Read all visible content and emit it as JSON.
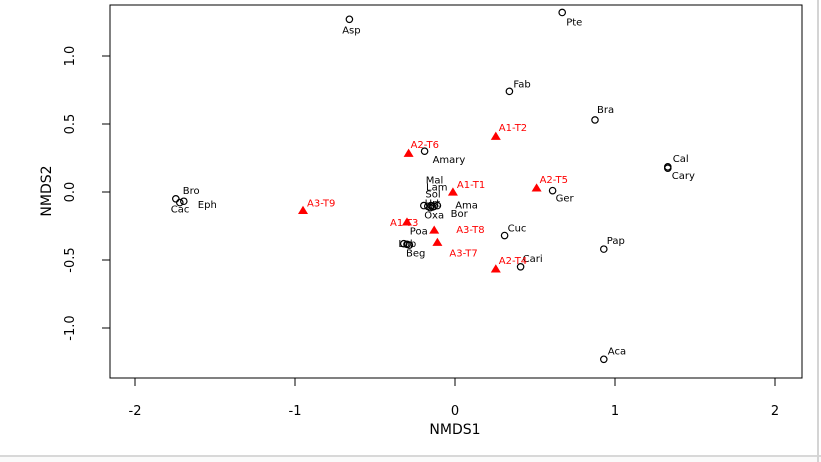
{
  "window": {
    "background": "#ffffff",
    "frame_line_color": "#d4d4d4"
  },
  "chart_data": {
    "type": "scatter",
    "title": "",
    "xlabel": "NMDS1",
    "ylabel": "NMDS2",
    "xlim": [
      -2.16,
      2.17
    ],
    "ylim": [
      -1.38,
      1.38
    ],
    "xticks": [
      -2,
      -1,
      0,
      1,
      2
    ],
    "xtick_labels": [
      "-2",
      "-1",
      "0",
      "1",
      "2"
    ],
    "yticks": [
      -1.0,
      -0.5,
      0.0,
      0.5,
      1.0
    ],
    "ytick_labels": [
      "-1.0",
      "-0.5",
      "0.0",
      "0.5",
      "1.0"
    ],
    "grid": false,
    "legend": null,
    "axis_color": "#000000",
    "series": [
      {
        "name": "species-scores",
        "marker": "open-circle",
        "color": "#000000",
        "label_color": "#000000",
        "points": [
          {
            "label": "Asp",
            "x": -0.66,
            "y": 1.27,
            "ldx": 2,
            "ldy": 14,
            "anchor": "middle"
          },
          {
            "label": "Pte",
            "x": 0.67,
            "y": 1.32,
            "ldx": 4,
            "ldy": 13
          },
          {
            "label": "Fab",
            "x": 0.34,
            "y": 0.74,
            "ldx": 4,
            "ldy": -4
          },
          {
            "label": "Bra",
            "x": 0.875,
            "y": 0.53,
            "ldx": 2,
            "ldy": -7
          },
          {
            "label": "Amary",
            "x": -0.19,
            "y": 0.3,
            "ldx": 8,
            "ldy": 12
          },
          {
            "label": "Cal",
            "x": 1.33,
            "y": 0.185,
            "ldx": 5,
            "ldy": -5
          },
          {
            "label": "Cary",
            "x": 1.33,
            "y": 0.175,
            "ldx": 4,
            "ldy": 11
          },
          {
            "label": "Ger",
            "x": 0.61,
            "y": 0.01,
            "ldx": 3,
            "ldy": 11
          },
          {
            "label": "Bro",
            "x": -1.745,
            "y": -0.05,
            "ldx": 7,
            "ldy": -5
          },
          {
            "label": "Cac",
            "x": -1.72,
            "y": -0.078,
            "ldx": -9,
            "ldy": 10
          },
          {
            "label": "Eph",
            "x": -1.695,
            "y": -0.068,
            "ldx": 14,
            "ldy": 7
          },
          {
            "label": "Mal",
            "x": -0.195,
            "y": -0.1,
            "ldx": 2,
            "ldy": -22
          },
          {
            "label": "Lam",
            "x": -0.15,
            "y": -0.1,
            "ldx": -5,
            "ldy": -15
          },
          {
            "label": "Sol",
            "x": -0.11,
            "y": -0.1,
            "ldx": -12,
            "ldy": -8
          },
          {
            "label": "Urt",
            "x": -0.17,
            "y": -0.105,
            "ldx": -3,
            "ldy": 0
          },
          {
            "label": "Oxa",
            "x": -0.155,
            "y": -0.115,
            "ldx": -6,
            "ldy": 11
          },
          {
            "label": "Ama",
            "x": -0.13,
            "y": -0.105,
            "ldx": 21,
            "ldy": 2
          },
          {
            "label": "Bor",
            "x": -0.14,
            "y": -0.11,
            "ldx": 18,
            "ldy": 10
          },
          {
            "label": "Poa",
            "x": -0.32,
            "y": -0.38,
            "ldx": 6,
            "ldy": -9
          },
          {
            "label": "Lob",
            "x": -0.285,
            "y": -0.39,
            "ldx": -11,
            "ldy": 2
          },
          {
            "label": "Beg",
            "x": -0.3,
            "y": -0.385,
            "ldx": -1,
            "ldy": 12
          },
          {
            "label": "Cuc",
            "x": 0.31,
            "y": -0.32,
            "ldx": 3,
            "ldy": -4
          },
          {
            "label": "Cari",
            "x": 0.41,
            "y": -0.55,
            "ldx": 2,
            "ldy": -5
          },
          {
            "label": "Pap",
            "x": 0.93,
            "y": -0.42,
            "ldx": 3,
            "ldy": -5
          },
          {
            "label": "Aca",
            "x": 0.93,
            "y": -1.23,
            "ldx": 4,
            "ldy": -5
          }
        ]
      },
      {
        "name": "site-scores",
        "marker": "filled-triangle",
        "color": "#ff0000",
        "label_color": "#ff0000",
        "points": [
          {
            "label": "A1-T1",
            "x": -0.013,
            "y": 0.0,
            "ldx": 4,
            "ldy": -4
          },
          {
            "label": "A1-T2",
            "x": 0.255,
            "y": 0.41,
            "ldx": 3,
            "ldy": -5
          },
          {
            "label": "A1-T3",
            "x": -0.3,
            "y": -0.22,
            "ldx": -17,
            "ldy": 4
          },
          {
            "label": "A2-T4",
            "x": 0.255,
            "y": -0.565,
            "ldx": 3,
            "ldy": -5
          },
          {
            "label": "A2-T5",
            "x": 0.51,
            "y": 0.03,
            "ldx": 3,
            "ldy": -5
          },
          {
            "label": "A2-T6",
            "x": -0.29,
            "y": 0.285,
            "ldx": 2,
            "ldy": -5
          },
          {
            "label": "A3-T7",
            "x": -0.11,
            "y": -0.37,
            "ldx": 12,
            "ldy": 14
          },
          {
            "label": "A3-T8",
            "x": -0.13,
            "y": -0.28,
            "ldx": 22,
            "ldy": 3
          },
          {
            "label": "A3-T9",
            "x": -0.95,
            "y": -0.135,
            "ldx": 4,
            "ldy": -4
          }
        ]
      }
    ]
  }
}
